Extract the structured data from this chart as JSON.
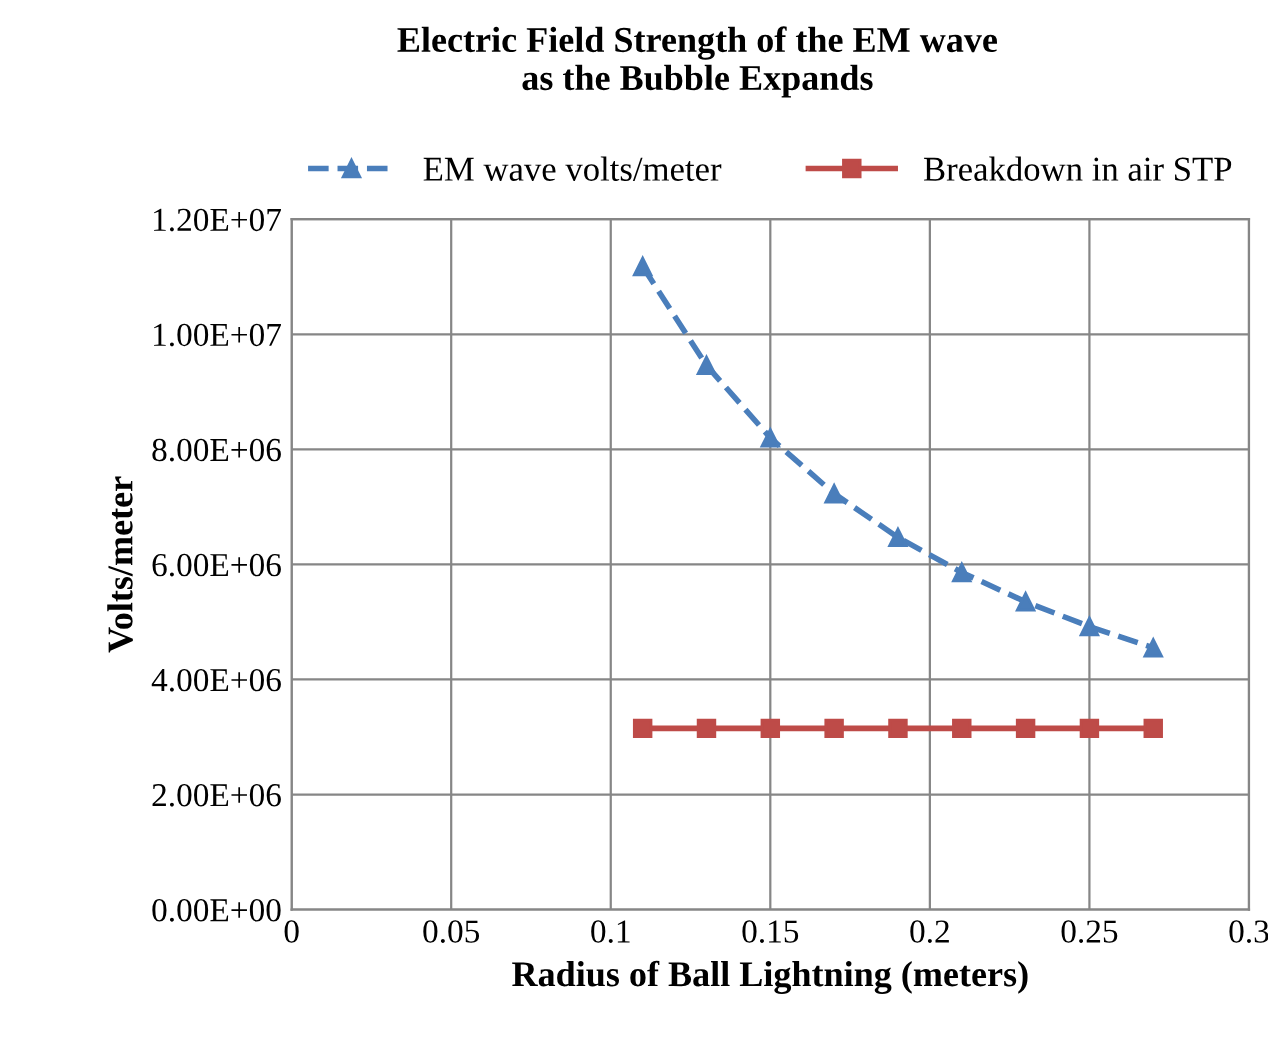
{
  "chart_data": {
    "type": "line",
    "title": "Electric Field Strength of the EM wave\nas the Bubble Expands",
    "xlabel": "Radius of Ball Lightning (meters)",
    "ylabel": "Volts/meter",
    "x": [
      0.11,
      0.13,
      0.15,
      0.17,
      0.19,
      0.21,
      0.23,
      0.25,
      0.27
    ],
    "series": [
      {
        "name": "EM wave volts/meter",
        "color": "#4a7ebb",
        "marker": "triangle",
        "line_style": "dashed",
        "values": [
          11180000,
          9460000,
          8200000,
          7230000,
          6470000,
          5860000,
          5350000,
          4920000,
          4550000
        ]
      },
      {
        "name": "Breakdown in air STP",
        "color": "#be4b48",
        "marker": "square",
        "line_style": "solid",
        "values": [
          3150000,
          3150000,
          3150000,
          3150000,
          3150000,
          3150000,
          3150000,
          3150000,
          3150000
        ]
      }
    ],
    "xlim": [
      0,
      0.3
    ],
    "xticks": [
      0,
      0.05,
      0.1,
      0.15,
      0.2,
      0.25,
      0.3
    ],
    "ylim": [
      0,
      12000000
    ],
    "yticks": [
      {
        "value": 0,
        "label": "0.00E+00"
      },
      {
        "value": 2000000,
        "label": "2.00E+06"
      },
      {
        "value": 4000000,
        "label": "4.00E+06"
      },
      {
        "value": 6000000,
        "label": "6.00E+06"
      },
      {
        "value": 8000000,
        "label": "8.00E+06"
      },
      {
        "value": 10000000,
        "label": "1.00E+07"
      },
      {
        "value": 12000000,
        "label": "1.20E+07"
      }
    ],
    "grid": true,
    "legend": "top"
  }
}
